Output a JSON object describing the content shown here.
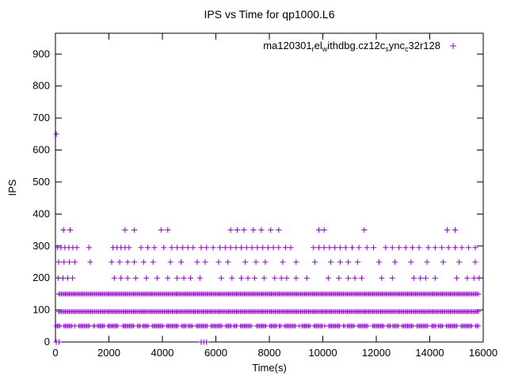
{
  "chart_data": {
    "type": "scatter",
    "title": "IPS vs Time for qp1000.L6",
    "xlabel": "Time(s)",
    "ylabel": "IPS",
    "xlim": [
      0,
      16000
    ],
    "ylim": [
      0,
      965
    ],
    "xticks": [
      0,
      2000,
      4000,
      6000,
      8000,
      10000,
      12000,
      14000,
      16000
    ],
    "yticks": [
      0,
      100,
      200,
      300,
      400,
      500,
      600,
      700,
      800,
      900
    ],
    "grid": false,
    "marker": "+",
    "series_color": "#9400d3",
    "legend": {
      "label": "ma120301_rel_withdbg.cz12c_sync_c32r128",
      "label_parts": [
        {
          "t": "ma120301",
          "sub": false
        },
        {
          "t": "r",
          "sub": true
        },
        {
          "t": "el",
          "sub": false
        },
        {
          "t": "w",
          "sub": true
        },
        {
          "t": "ithdbg.cz12c",
          "sub": false
        },
        {
          "t": "s",
          "sub": true
        },
        {
          "t": "ync",
          "sub": false
        },
        {
          "t": "c",
          "sub": true
        },
        {
          "t": "32r128",
          "sub": false
        }
      ],
      "marker": "+",
      "position": "top-right"
    },
    "bands": [
      {
        "y": 150,
        "x_start": 120,
        "x_end": 15820,
        "step": 50,
        "style": "solid"
      },
      {
        "y": 95,
        "x_start": 120,
        "x_end": 15820,
        "step": 50,
        "style": "solid"
      },
      {
        "y": 50,
        "x_start": 20,
        "x_end": 15820,
        "step": 50,
        "style": "dashed"
      }
    ],
    "points": [
      {
        "y": 350,
        "x": [
          300,
          550,
          2600,
          2950,
          3950,
          4200,
          6550,
          6800,
          7050,
          7400,
          7700,
          8050,
          8350,
          9850,
          10050,
          11550,
          14650,
          14950
        ]
      },
      {
        "y": 295,
        "x": [
          80,
          200,
          350,
          500,
          650,
          800,
          1250,
          2150,
          2300,
          2450,
          2600,
          2750,
          3200,
          3450,
          3700,
          4050,
          4350,
          4550,
          4750,
          4950,
          5150,
          5450,
          5650,
          5900,
          6150,
          6350,
          6550,
          6750,
          6950,
          7150,
          7350,
          7550,
          7750,
          7950,
          8150,
          8350,
          8600,
          8800,
          9650,
          9850,
          10050,
          10250,
          10450,
          10650,
          10850,
          11100,
          11350,
          11650,
          11900,
          12350,
          12600,
          12850,
          13100,
          13350,
          13600,
          13950,
          14200,
          14450,
          14700,
          14950,
          15200,
          15450,
          15700
        ]
      },
      {
        "y": 250,
        "x": [
          120,
          320,
          520,
          720,
          1300,
          2100,
          2400,
          2700,
          2950,
          3300,
          3650,
          4300,
          4700,
          5300,
          5600,
          6100,
          6450,
          7100,
          7500,
          7850,
          8500,
          9000,
          9700,
          10300,
          10650,
          10950,
          11300,
          12100,
          12700,
          13300,
          13900,
          14500,
          15100,
          15700
        ]
      },
      {
        "y": 200,
        "x": [
          100,
          280,
          460,
          640,
          2200,
          2450,
          2700,
          3000,
          3400,
          3800,
          4200,
          4550,
          4800,
          5050,
          5400,
          6200,
          6600,
          6950,
          7200,
          7450,
          7800,
          8200,
          8450,
          8650,
          9000,
          9400,
          10200,
          10600,
          10950,
          11200,
          11450,
          12200,
          12600,
          13400,
          13650,
          13850,
          14200,
          15000,
          15400,
          15650,
          15850
        ]
      },
      {
        "y": 0,
        "x": [
          30,
          130,
          5450,
          5550,
          5650
        ]
      }
    ],
    "singles": [
      [
        30,
        650
      ]
    ]
  }
}
